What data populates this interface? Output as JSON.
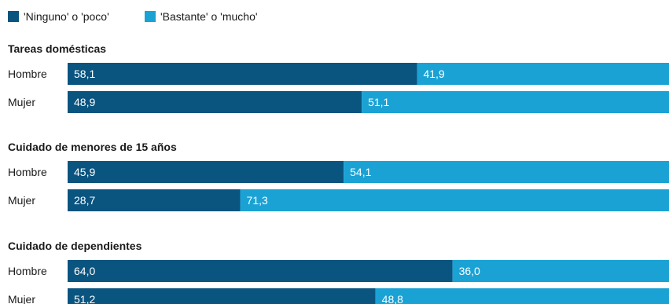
{
  "colors": {
    "ninguno": "#0a5480",
    "bastante": "#1ba2d4"
  },
  "chart_data": {
    "type": "bar",
    "orientation": "horizontal",
    "stacked": true,
    "xlim": [
      0,
      100
    ],
    "legend": "top-left",
    "series": [
      {
        "name": "'Ninguno' o 'poco'"
      },
      {
        "name": "'Bastante' o 'mucho'"
      }
    ],
    "groups": [
      {
        "title": "Tareas domésticas",
        "rows": [
          {
            "label": "Hombre",
            "values": [
              58.1,
              41.9
            ],
            "labels": [
              "58,1",
              "41,9"
            ]
          },
          {
            "label": "Mujer",
            "values": [
              48.9,
              51.1
            ],
            "labels": [
              "48,9",
              "51,1"
            ]
          }
        ]
      },
      {
        "title": "Cuidado de menores de 15 años",
        "rows": [
          {
            "label": "Hombre",
            "values": [
              45.9,
              54.1
            ],
            "labels": [
              "45,9",
              "54,1"
            ]
          },
          {
            "label": "Mujer",
            "values": [
              28.7,
              71.3
            ],
            "labels": [
              "28,7",
              "71,3"
            ]
          }
        ]
      },
      {
        "title": "Cuidado de dependientes",
        "rows": [
          {
            "label": "Hombre",
            "values": [
              64.0,
              36.0
            ],
            "labels": [
              "64,0",
              "36,0"
            ]
          },
          {
            "label": "Mujer",
            "values": [
              51.2,
              48.8
            ],
            "labels": [
              "51,2",
              "48,8"
            ]
          }
        ]
      }
    ]
  }
}
